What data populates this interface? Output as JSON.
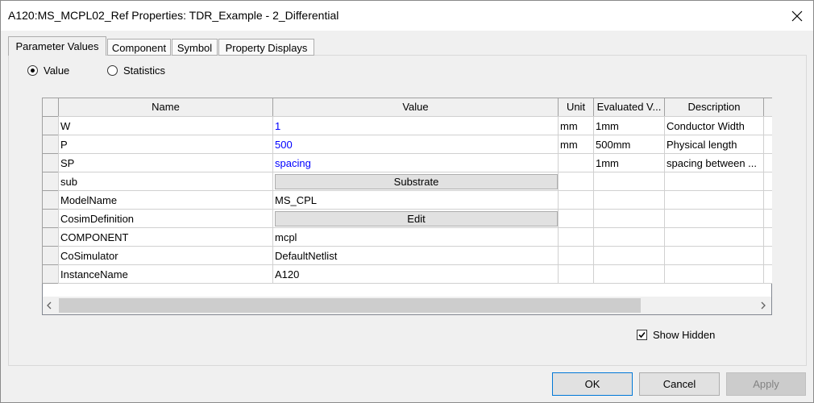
{
  "window": {
    "title": "A120:MS_MCPL02_Ref Properties: TDR_Example - 2_Differential"
  },
  "tabs": {
    "items": [
      "Parameter Values",
      "Component",
      "Symbol",
      "Property Displays"
    ],
    "selected": 0
  },
  "radios": {
    "items": [
      "Value",
      "Statistics"
    ],
    "selected": 0
  },
  "table": {
    "headers": [
      "Name",
      "Value",
      "Unit",
      "Evaluated V...",
      "Description"
    ],
    "rows": [
      {
        "name": "W",
        "value": "1",
        "kind": "expr",
        "unit": "mm",
        "evaluated": "1mm",
        "description": "Conductor Width"
      },
      {
        "name": "P",
        "value": "500",
        "kind": "expr",
        "unit": "mm",
        "evaluated": "500mm",
        "description": "Physical length"
      },
      {
        "name": "SP",
        "value": "spacing",
        "kind": "expr",
        "evaluated": "1mm",
        "description": "spacing between ..."
      },
      {
        "name": "sub",
        "value": "Substrate",
        "kind": "button"
      },
      {
        "name": "ModelName",
        "value": "MS_CPL",
        "kind": "text"
      },
      {
        "name": "CosimDefinition",
        "value": "Edit",
        "kind": "button"
      },
      {
        "name": "COMPONENT",
        "value": "mcpl",
        "kind": "text"
      },
      {
        "name": "CoSimulator",
        "value": "DefaultNetlist",
        "kind": "text"
      },
      {
        "name": "InstanceName",
        "value": "A120",
        "kind": "text"
      }
    ]
  },
  "show_hidden": {
    "label": "Show Hidden",
    "checked": true
  },
  "buttons": [
    {
      "label": "OK",
      "enabled": true
    },
    {
      "label": "Cancel",
      "enabled": true
    },
    {
      "label": "Apply",
      "enabled": false
    }
  ]
}
